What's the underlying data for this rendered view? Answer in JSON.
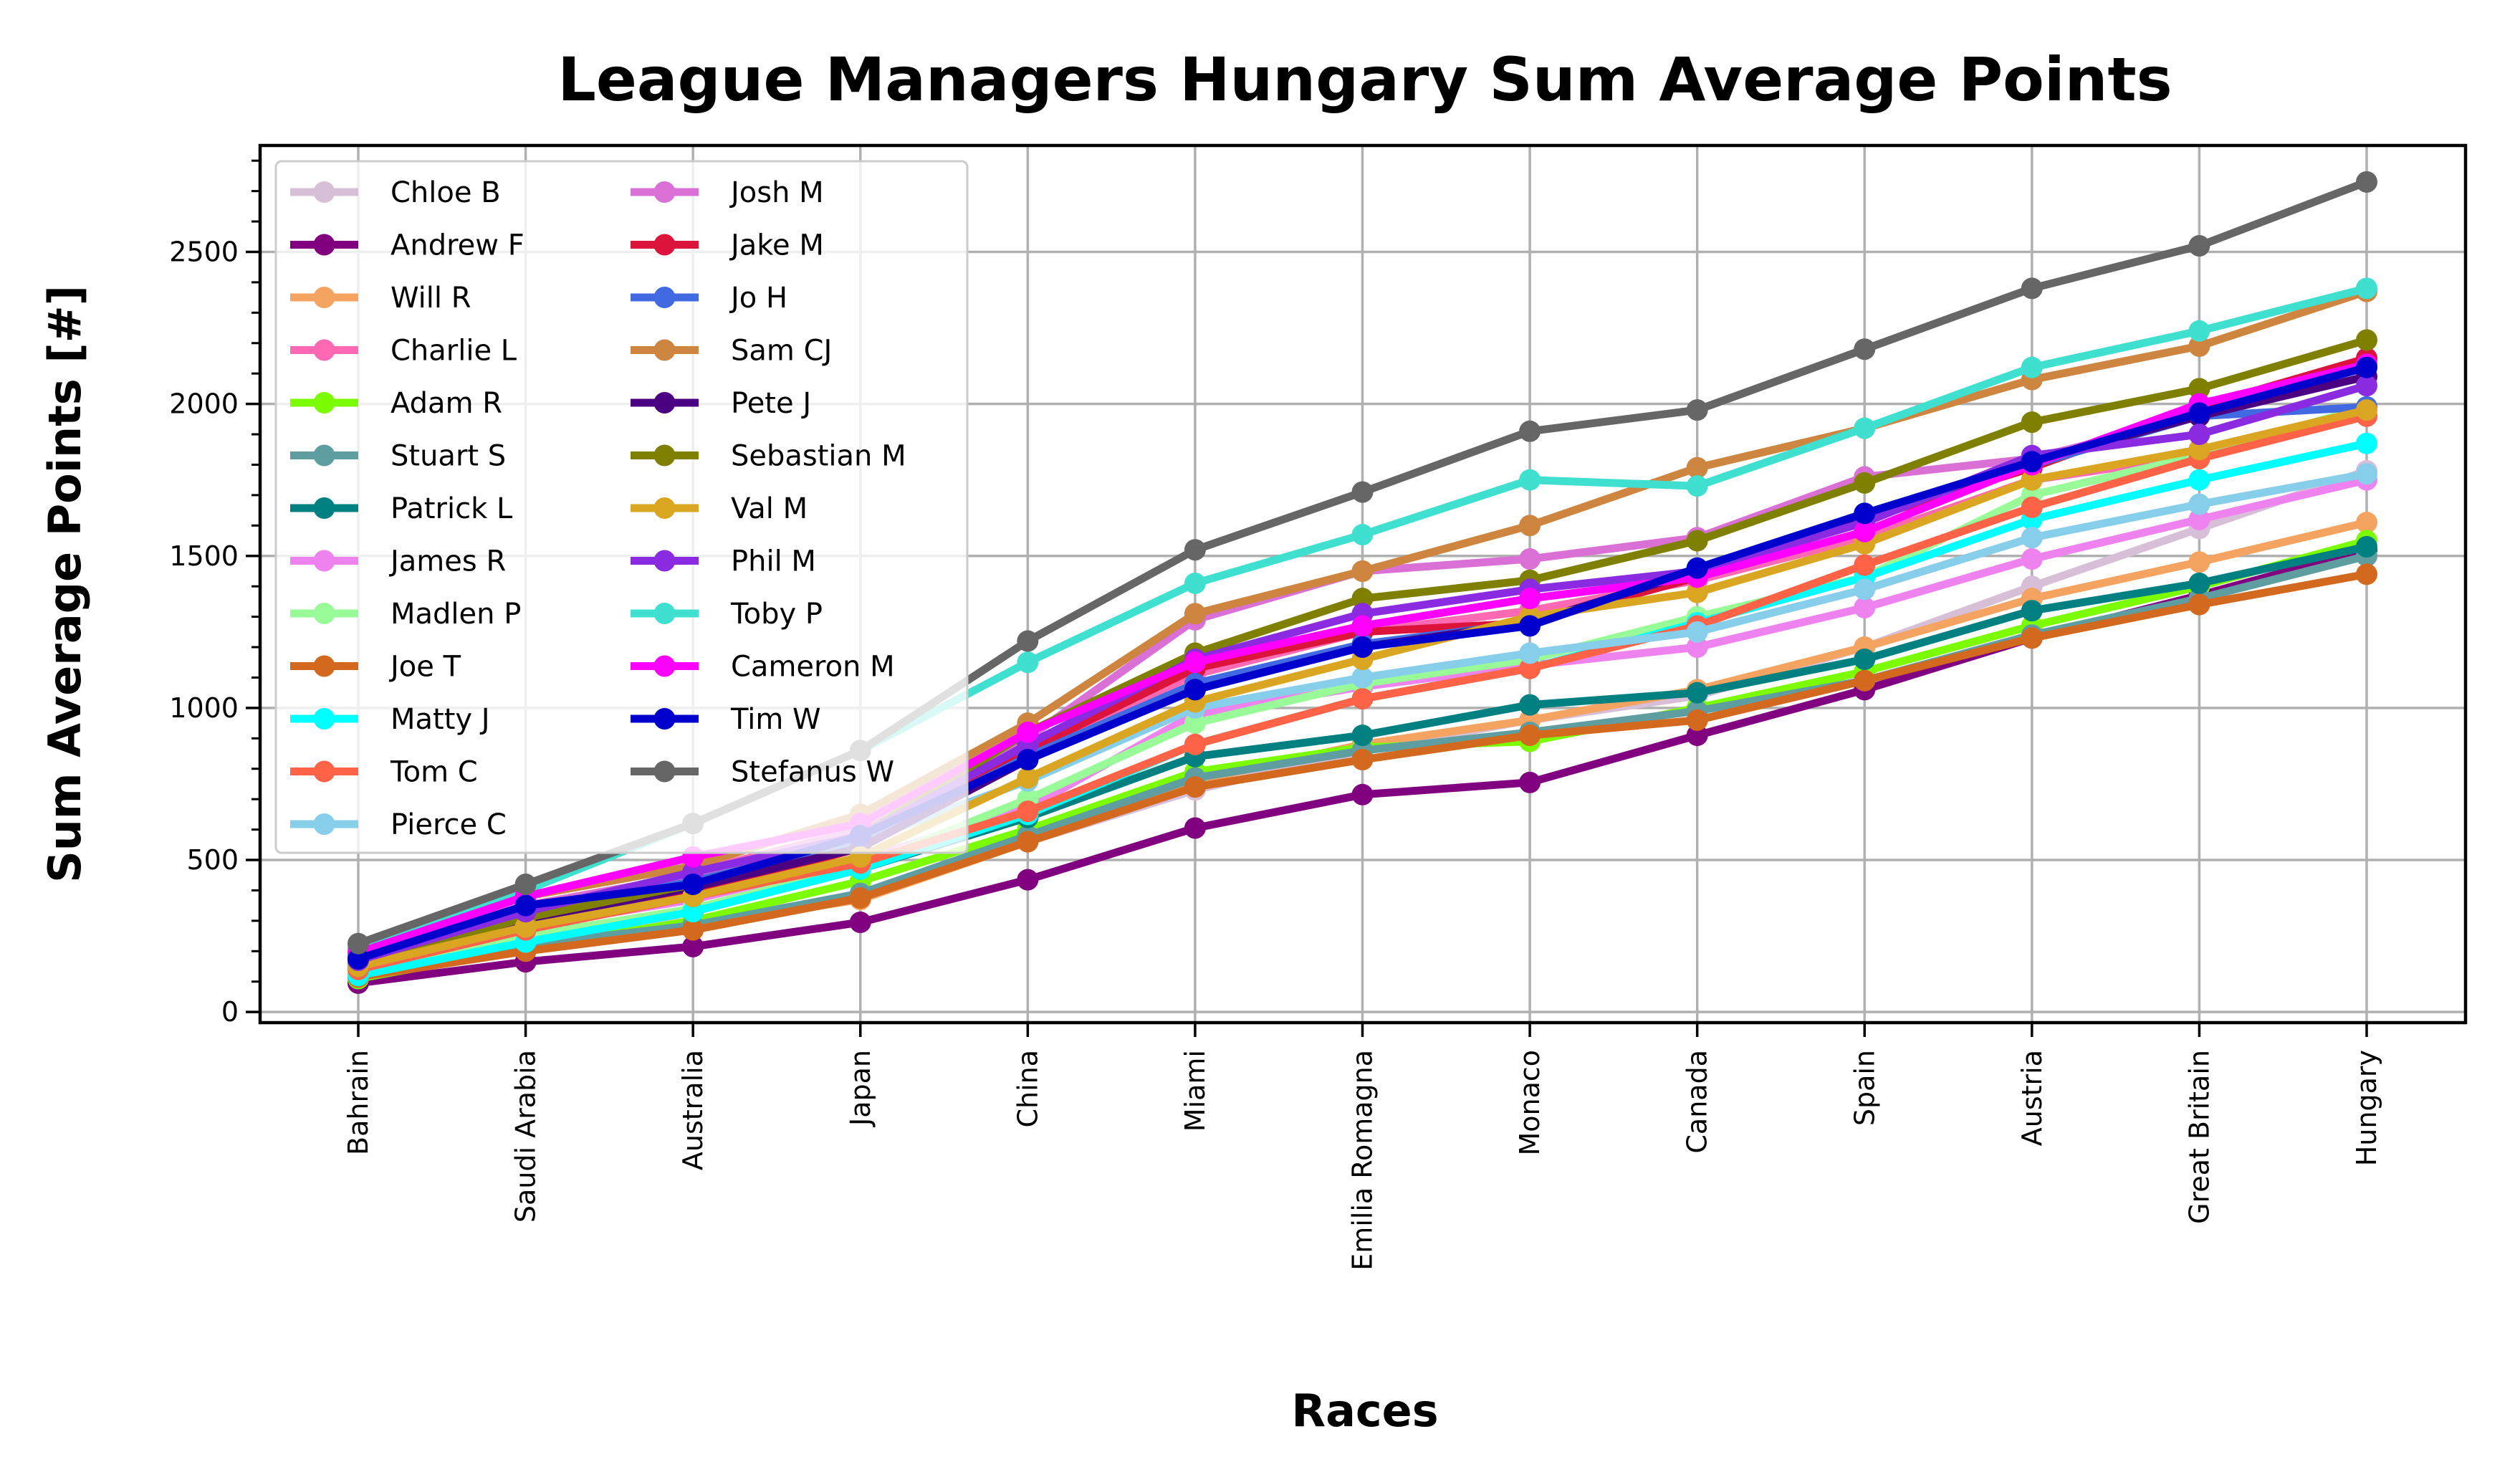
{
  "chart_data": {
    "type": "line",
    "title": "League Managers Hungary Sum Average Points",
    "xlabel": "Races",
    "ylabel": "Sum Average Points [#]",
    "categories": [
      "Bahrain",
      "Saudi Arabia",
      "Australia",
      "Japan",
      "China",
      "Miami",
      "Emilia Romagna",
      "Monaco",
      "Canada",
      "Spain",
      "Austria",
      "Great Britain",
      "Hungary"
    ],
    "y_ticks": [
      "0",
      "500",
      "1000",
      "1500",
      "2000",
      "2500"
    ],
    "ylim": [
      -35,
      2850
    ],
    "grid": true,
    "legend_position": "upper-left",
    "series": [
      {
        "name": "Chloe B",
        "color": "#d8bfd8",
        "values": [
          130,
          240,
          300,
          380,
          560,
          730,
          860,
          960,
          1040,
          1200,
          1400,
          1590,
          1780
        ]
      },
      {
        "name": "Andrew F",
        "color": "#800080",
        "values": [
          95,
          165,
          215,
          295,
          435,
          605,
          715,
          755,
          910,
          1060,
          1230,
          1370,
          1520
        ]
      },
      {
        "name": "Will R",
        "color": "#f4a460",
        "values": [
          125,
          225,
          285,
          370,
          560,
          760,
          880,
          960,
          1060,
          1200,
          1360,
          1480,
          1610
        ]
      },
      {
        "name": "Charlie L",
        "color": "#ff69b4",
        "values": [
          165,
          330,
          460,
          600,
          860,
          1110,
          1250,
          1320,
          1420,
          1560,
          1750,
          1830,
          1960
        ]
      },
      {
        "name": "Adam R",
        "color": "#7cfc00",
        "values": [
          110,
          210,
          300,
          430,
          600,
          790,
          870,
          890,
          1000,
          1120,
          1270,
          1400,
          1550
        ]
      },
      {
        "name": "Stuart S",
        "color": "#5f9ea0",
        "values": [
          115,
          220,
          285,
          390,
          580,
          770,
          860,
          920,
          990,
          1090,
          1240,
          1360,
          1500
        ]
      },
      {
        "name": "Patrick L",
        "color": "#008080",
        "values": [
          125,
          255,
          330,
          470,
          640,
          840,
          910,
          1010,
          1050,
          1160,
          1320,
          1410,
          1530
        ]
      },
      {
        "name": "James R",
        "color": "#ee82ee",
        "values": [
          145,
          280,
          370,
          500,
          670,
          980,
          1070,
          1140,
          1200,
          1330,
          1490,
          1620,
          1750
        ]
      },
      {
        "name": "Madlen P",
        "color": "#98fb98",
        "values": [
          130,
          250,
          340,
          480,
          700,
          950,
          1080,
          1160,
          1300,
          1430,
          1700,
          1830,
          1990
        ]
      },
      {
        "name": "Joe T",
        "color": "#d2691e",
        "values": [
          115,
          200,
          270,
          375,
          560,
          740,
          830,
          910,
          960,
          1090,
          1230,
          1340,
          1440
        ]
      },
      {
        "name": "Matty J",
        "color": "#00ffff",
        "values": [
          120,
          230,
          330,
          470,
          650,
          880,
          1030,
          1130,
          1280,
          1430,
          1620,
          1750,
          1870
        ]
      },
      {
        "name": "Tom C",
        "color": "#ff6347",
        "values": [
          140,
          270,
          380,
          490,
          660,
          880,
          1030,
          1130,
          1270,
          1470,
          1660,
          1820,
          1960
        ]
      },
      {
        "name": "Pierce C",
        "color": "#87ceeb",
        "values": [
          150,
          280,
          390,
          560,
          760,
          1000,
          1100,
          1180,
          1250,
          1390,
          1560,
          1670,
          1770
        ]
      },
      {
        "name": "Josh M",
        "color": "#da70d6",
        "values": [
          185,
          350,
          450,
          600,
          900,
          1290,
          1450,
          1490,
          1560,
          1760,
          1820,
          1960,
          2150
        ]
      },
      {
        "name": "Jake M",
        "color": "#dc143c",
        "values": [
          160,
          300,
          390,
          540,
          860,
          1130,
          1250,
          1280,
          1430,
          1620,
          1790,
          1990,
          2150
        ]
      },
      {
        "name": "Jo H",
        "color": "#4169e1",
        "values": [
          175,
          320,
          430,
          560,
          840,
          1080,
          1210,
          1280,
          1450,
          1630,
          1800,
          1960,
          1990
        ]
      },
      {
        "name": "Sam CJ",
        "color": "#cd853f",
        "values": [
          210,
          380,
          480,
          650,
          950,
          1310,
          1450,
          1600,
          1790,
          1920,
          2080,
          2190,
          2370
        ]
      },
      {
        "name": "Pete J",
        "color": "#4b0082",
        "values": [
          150,
          300,
          410,
          540,
          830,
          1060,
          1200,
          1280,
          1450,
          1630,
          1810,
          1960,
          2090
        ]
      },
      {
        "name": "Sebastian M",
        "color": "#808000",
        "values": [
          160,
          310,
          420,
          580,
          920,
          1180,
          1360,
          1420,
          1550,
          1740,
          1940,
          2050,
          2210
        ]
      },
      {
        "name": "Val M",
        "color": "#daa520",
        "values": [
          150,
          280,
          380,
          510,
          770,
          1020,
          1160,
          1300,
          1380,
          1540,
          1750,
          1850,
          1980
        ]
      },
      {
        "name": "Phil M",
        "color": "#8a2be2",
        "values": [
          170,
          330,
          460,
          580,
          880,
          1160,
          1310,
          1390,
          1450,
          1610,
          1830,
          1900,
          2060
        ]
      },
      {
        "name": "Toby P",
        "color": "#40e0d0",
        "values": [
          200,
          400,
          620,
          860,
          1150,
          1410,
          1570,
          1750,
          1730,
          1920,
          2120,
          2240,
          2380
        ]
      },
      {
        "name": "Cameron M",
        "color": "#ff00ff",
        "values": [
          195,
          380,
          510,
          620,
          920,
          1150,
          1270,
          1360,
          1430,
          1580,
          1800,
          2000,
          2130
        ]
      },
      {
        "name": "Tim W",
        "color": "#0000cd",
        "values": [
          175,
          350,
          420,
          580,
          830,
          1060,
          1200,
          1270,
          1460,
          1640,
          1810,
          1970,
          2120
        ]
      },
      {
        "name": "Stefanus W",
        "color": "#666666",
        "values": [
          225,
          420,
          620,
          860,
          1220,
          1520,
          1710,
          1910,
          1980,
          2180,
          2380,
          2520,
          2730
        ]
      }
    ]
  }
}
